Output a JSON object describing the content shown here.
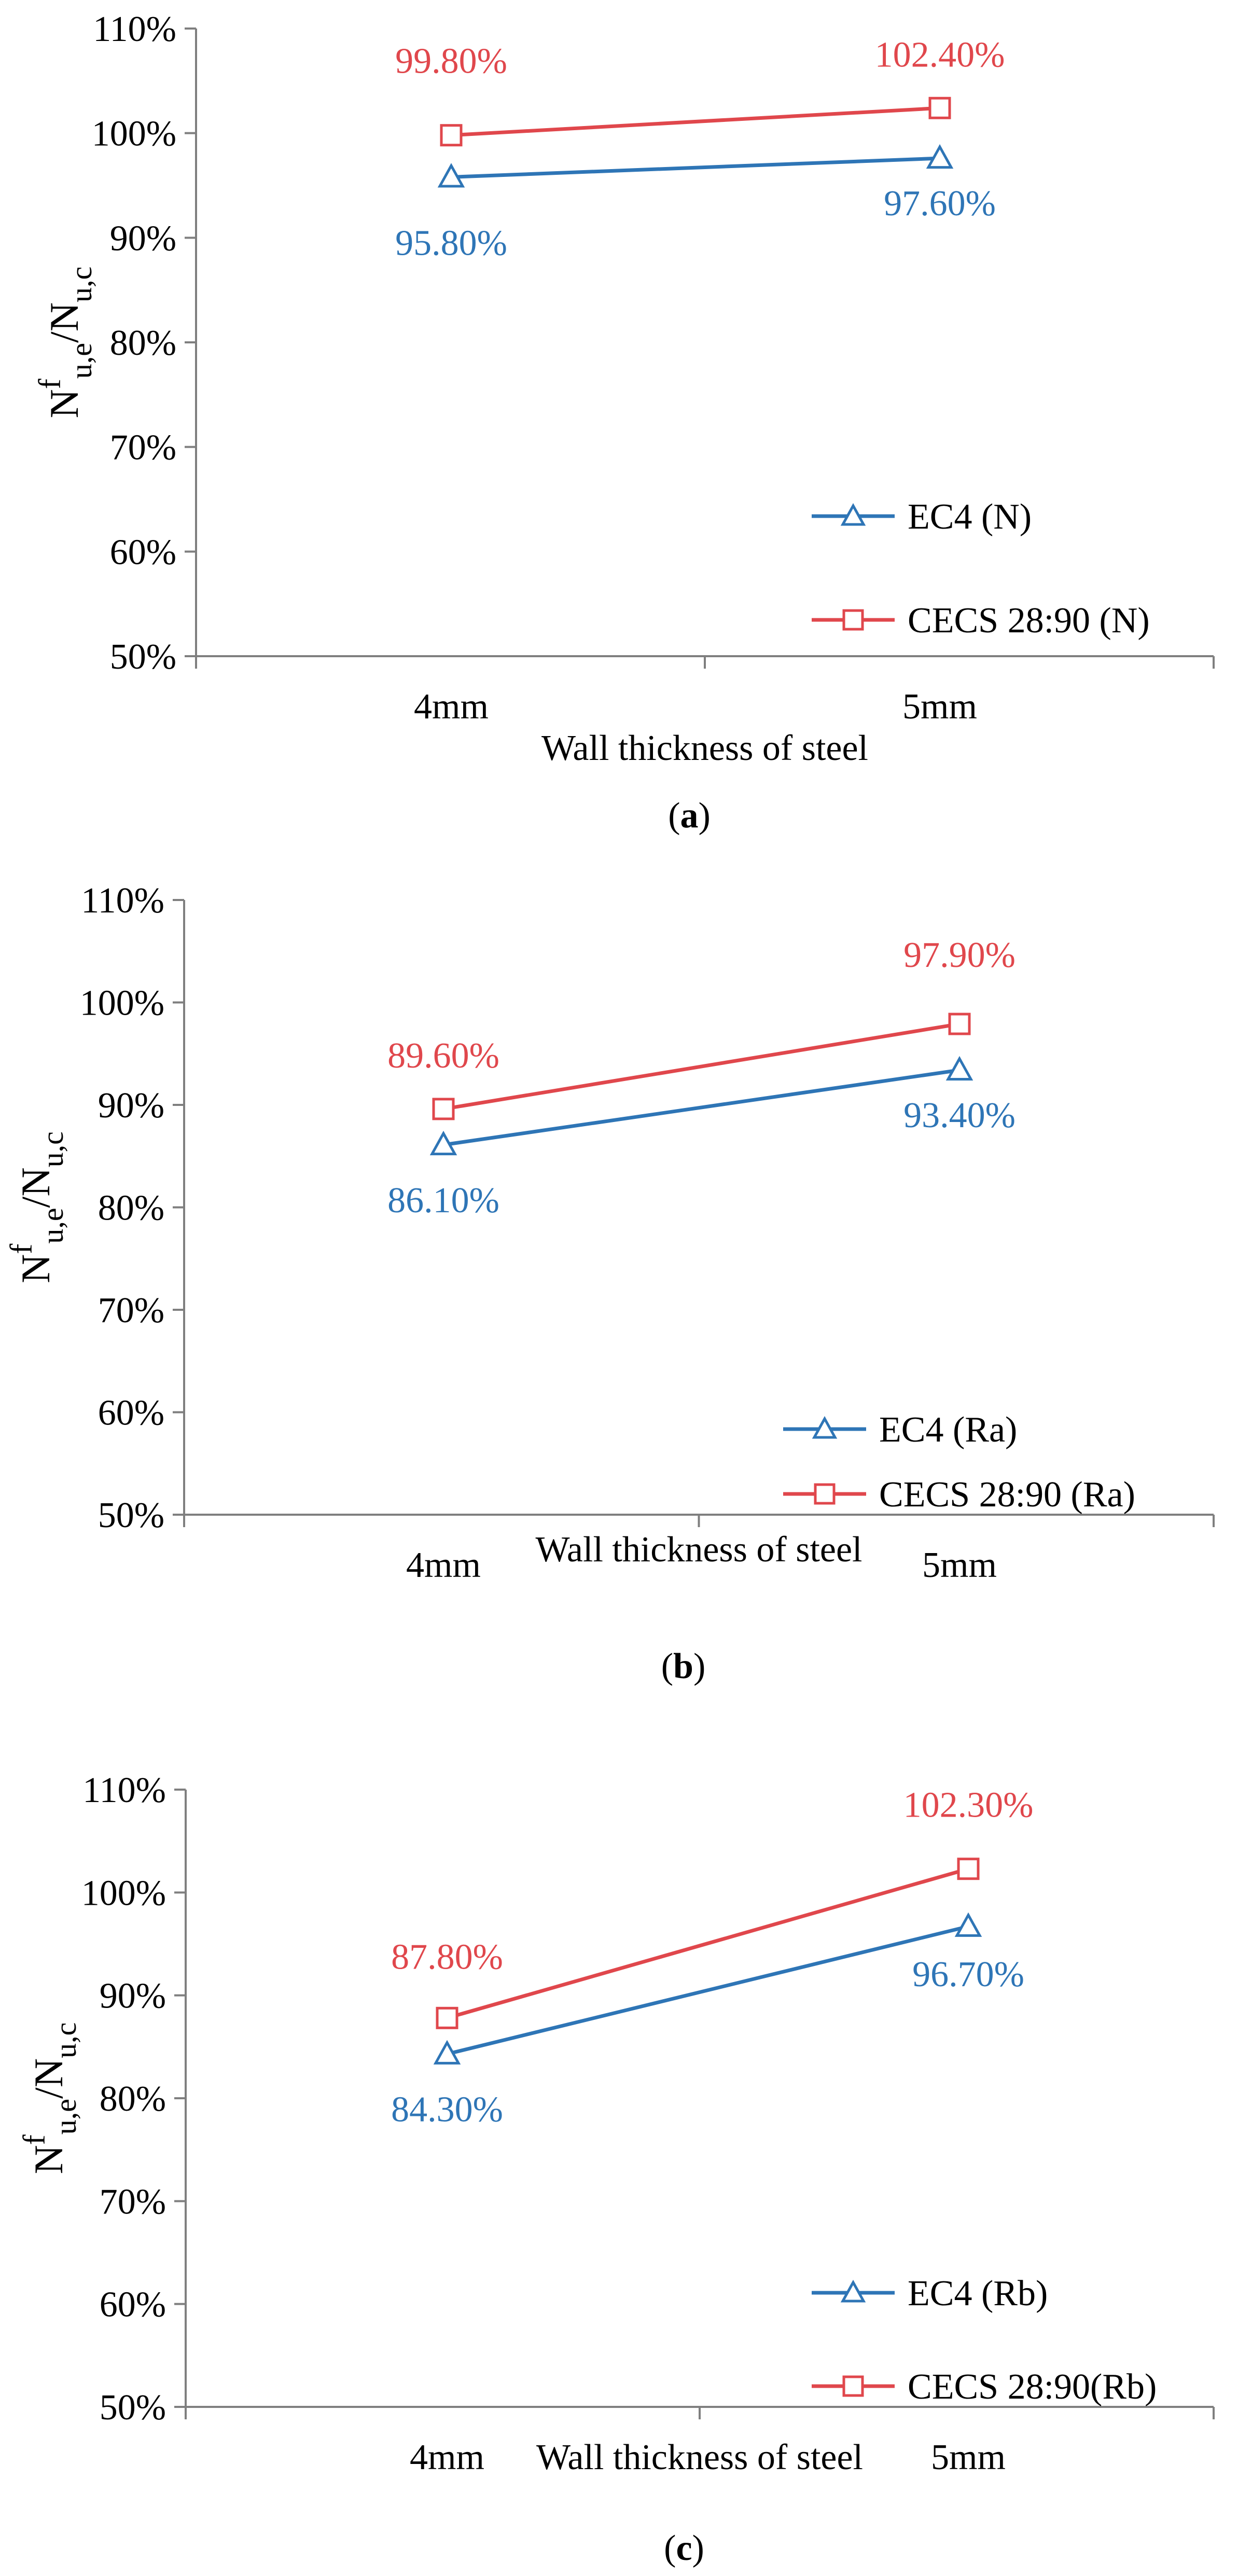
{
  "colors": {
    "ec4": "#2E75B6",
    "cecs": "#E0474C",
    "axis": "#7F7F7F",
    "text": "#000000"
  },
  "chart_data": [
    {
      "type": "line",
      "caption": "(a)",
      "xlabel": "Wall thickness of steel",
      "ylabel": "Nfu,e/Nu,c",
      "categories": [
        "4mm",
        "5mm"
      ],
      "ylim": [
        50,
        110
      ],
      "ytick_labels": [
        "50%",
        "60%",
        "70%",
        "80%",
        "90%",
        "100%",
        "110%"
      ],
      "series": [
        {
          "name": "EC4 (N)",
          "marker": "triangle",
          "values": [
            95.8,
            97.6
          ],
          "labels": [
            "95.80%",
            "97.60%"
          ]
        },
        {
          "name": "CECS 28:90 (N)",
          "marker": "square",
          "values": [
            99.8,
            102.4
          ],
          "labels": [
            "99.80%",
            "102.40%"
          ]
        }
      ],
      "legend_position": "bottom-right",
      "grid": false
    },
    {
      "type": "line",
      "caption": "(b)",
      "xlabel": "Wall thickness of steel",
      "ylabel": "Nfu,e/Nu,c",
      "categories": [
        "4mm",
        "5mm"
      ],
      "ylim": [
        50,
        110
      ],
      "ytick_labels": [
        "50%",
        "60%",
        "70%",
        "80%",
        "90%",
        "100%",
        "110%"
      ],
      "series": [
        {
          "name": "EC4 (Ra)",
          "marker": "triangle",
          "values": [
            86.1,
            93.4
          ],
          "labels": [
            "86.10%",
            "93.40%"
          ]
        },
        {
          "name": "CECS 28:90 (Ra)",
          "marker": "square",
          "values": [
            89.6,
            97.9
          ],
          "labels": [
            "89.60%",
            "97.90%"
          ]
        }
      ],
      "legend_position": "bottom-right",
      "grid": false
    },
    {
      "type": "line",
      "caption": "(c)",
      "xlabel": "Wall thickness of steel",
      "ylabel": "Nfu,e/Nu,c",
      "categories": [
        "4mm",
        "5mm"
      ],
      "ylim": [
        50,
        110
      ],
      "ytick_labels": [
        "50%",
        "60%",
        "70%",
        "80%",
        "90%",
        "100%",
        "110%"
      ],
      "series": [
        {
          "name": "EC4 (Rb)",
          "marker": "triangle",
          "values": [
            84.3,
            96.7
          ],
          "labels": [
            "84.30%",
            "96.70%"
          ]
        },
        {
          "name": "CECS 28:90(Rb)",
          "marker": "square",
          "values": [
            87.8,
            102.3
          ],
          "labels": [
            "87.80%",
            "102.30%"
          ]
        }
      ],
      "legend_position": "bottom-right",
      "grid": false
    }
  ]
}
